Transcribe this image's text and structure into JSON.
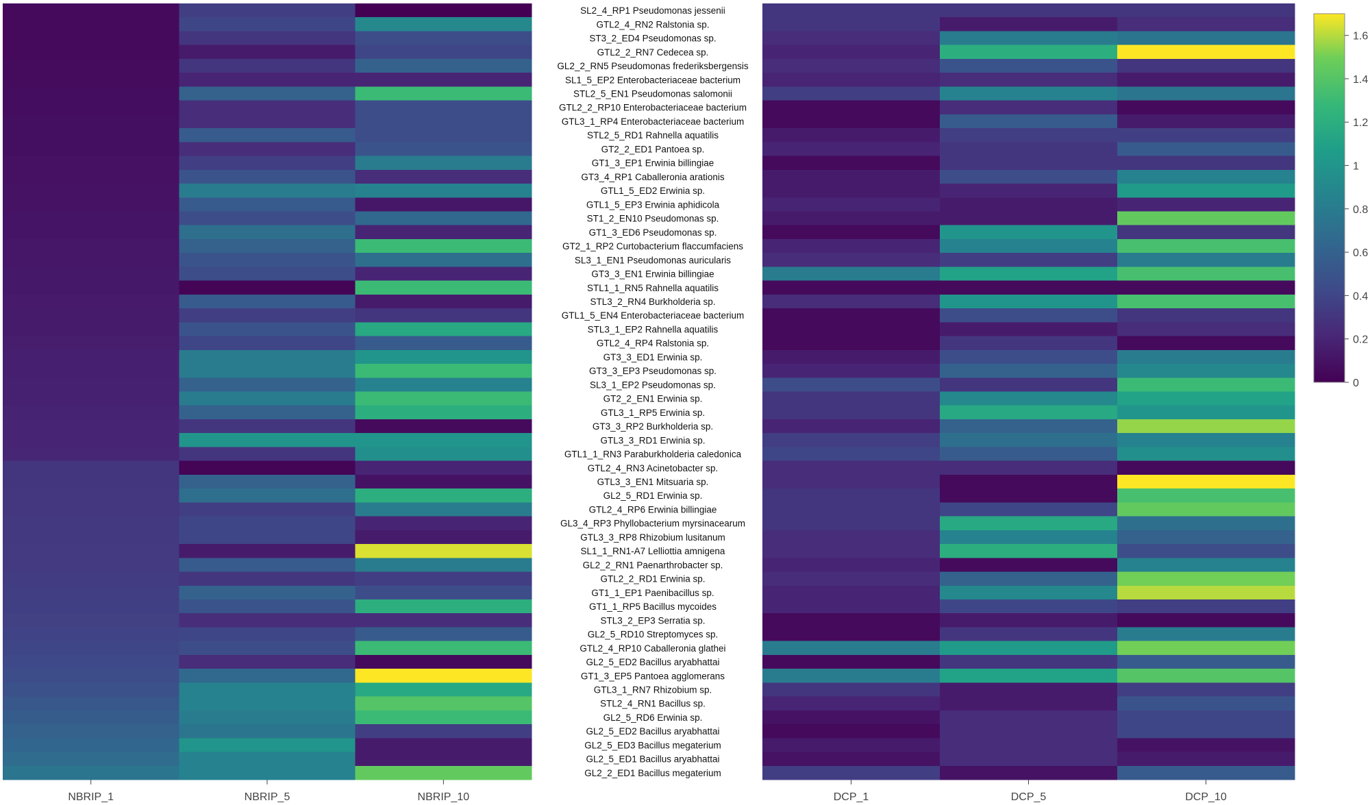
{
  "chart_data": {
    "type": "heatmap",
    "title": "",
    "colorscale": "viridis",
    "zlim": [
      0,
      1.7
    ],
    "colorbar_ticks": [
      "0",
      "0.2",
      "0.4",
      "0.6",
      "0.8",
      "1",
      "1.2",
      "1.4",
      "1.6"
    ],
    "colorbar_tick_values": [
      0,
      0.2,
      0.4,
      0.6,
      0.8,
      1.0,
      1.2,
      1.4,
      1.6
    ],
    "rows": [
      "SL2_4_RP1 Pseudomonas jessenii",
      "GTL2_4_RN2 Ralstonia sp.",
      "ST3_2_ED4 Pseudomonas sp.",
      "GTL2_2_RN7 Cedecea sp.",
      "GL2_2_RN5 Pseudomonas frederiksbergensis",
      "SL1_5_EP2 Enterobacteriaceae bacterium",
      "STL2_5_EN1 Pseudomonas salomonii",
      "GTL2_2_RP10 Enterobacteriaceae bacterium",
      "GTL3_1_RP4 Enterobacteriaceae bacterium",
      "STL2_5_RD1 Rahnella aquatilis",
      "GT2_2_ED1 Pantoea sp.",
      "GT1_3_EP1 Erwinia billingiae",
      "GT3_4_RP1 Caballeronia arationis",
      "GTL1_5_ED2 Erwinia sp.",
      "GTL1_5_EP3 Erwinia aphidicola",
      "ST1_2_EN10 Pseudomonas sp.",
      "GT1_3_ED6 Pseudomonas sp.",
      "GT2_1_RP2 Curtobacterium flaccumfaciens",
      "SL3_1_EN1 Pseudomonas auricularis",
      "GT3_3_EN1 Erwinia billingiae",
      "STL1_1_RN5 Rahnella aquatilis",
      "STL3_2_RN4 Burkholderia sp.",
      "GTL1_5_EN4 Enterobacteriaceae bacterium",
      "STL3_1_EP2 Rahnella aquatilis",
      "GTL2_4_RP4 Ralstonia sp.",
      "GT3_3_ED1 Erwinia sp.",
      "GT3_3_EP3 Pseudomonas sp.",
      "SL3_1_EP2 Pseudomonas sp.",
      "GT2_2_EN1 Erwinia sp.",
      "GTL3_1_RP5 Erwinia sp.",
      "GT3_3_RP2 Burkholderia sp.",
      "GTL3_3_RD1 Erwinia sp.",
      "GTL1_1_RN3 Paraburkholderia caledonica",
      "GTL2_4_RN3 Acinetobacter sp.",
      "GTL3_3_EN1 Mitsuaria sp.",
      "GL2_5_RD1 Erwinia sp.",
      "GTL2_4_RP6 Erwinia billingiae",
      "GL3_4_RP3 Phyllobacterium myrsinacearum",
      "GTL3_3_RP8 Rhizobium lusitanum",
      "SL1_1_RN1-A7 Lelliottia amnigena",
      "GL2_2_RN1 Paenarthrobacter sp.",
      "GTL2_2_RD1 Erwinia sp.",
      "GT1_1_EP1 Paenibacillus sp.",
      "GT1_1_RP5 Bacillus mycoides",
      "STL3_2_EP3 Serratia sp.",
      "GL2_5_RD10 Streptomyces sp.",
      "GTL2_4_RP10 Caballeronia glathei",
      "GL2_5_ED2 Bacillus aryabhattai",
      "GT1_3_EP5 Pantoea agglomerans",
      "GTL3_1_RN7 Rhizobium sp.",
      "STL2_4_RN1 Bacillus sp.",
      "GL2_5_RD6 Erwinia sp.",
      "GL2_5_ED2 Bacillus aryabhattai",
      "GL2_5_ED3 Bacillus megaterium",
      "GL2_5_ED1 Bacillus aryabhattai",
      "GL2_2_ED1  Bacillus megaterium"
    ],
    "left_panel": {
      "columns": [
        "NBRIP_1",
        "NBRIP_5",
        "NBRIP_10"
      ],
      "values": [
        [
          0.05,
          0.35,
          0.0
        ],
        [
          0.05,
          0.4,
          0.9
        ],
        [
          0.05,
          0.3,
          0.45
        ],
        [
          0.05,
          0.15,
          0.4
        ],
        [
          0.06,
          0.3,
          0.6
        ],
        [
          0.06,
          0.2,
          0.2
        ],
        [
          0.07,
          0.6,
          1.3
        ],
        [
          0.07,
          0.25,
          0.45
        ],
        [
          0.08,
          0.25,
          0.45
        ],
        [
          0.08,
          0.55,
          0.45
        ],
        [
          0.08,
          0.25,
          0.5
        ],
        [
          0.09,
          0.35,
          0.8
        ],
        [
          0.09,
          0.5,
          0.25
        ],
        [
          0.1,
          0.8,
          0.85
        ],
        [
          0.1,
          0.55,
          0.12
        ],
        [
          0.11,
          0.45,
          0.65
        ],
        [
          0.11,
          0.7,
          0.2
        ],
        [
          0.12,
          0.6,
          1.3
        ],
        [
          0.12,
          0.5,
          0.7
        ],
        [
          0.13,
          0.45,
          0.2
        ],
        [
          0.13,
          0.02,
          1.3
        ],
        [
          0.14,
          0.55,
          0.15
        ],
        [
          0.15,
          0.35,
          0.3
        ],
        [
          0.15,
          0.5,
          1.15
        ],
        [
          0.16,
          0.4,
          0.55
        ],
        [
          0.17,
          0.8,
          1.0
        ],
        [
          0.17,
          0.8,
          1.3
        ],
        [
          0.18,
          0.6,
          0.85
        ],
        [
          0.18,
          0.8,
          1.3
        ],
        [
          0.19,
          0.6,
          1.2
        ],
        [
          0.2,
          0.3,
          0.05
        ],
        [
          0.2,
          1.0,
          1.0
        ],
        [
          0.21,
          0.3,
          0.95
        ],
        [
          0.3,
          0.02,
          0.2
        ],
        [
          0.3,
          0.6,
          0.1
        ],
        [
          0.31,
          0.7,
          1.2
        ],
        [
          0.31,
          0.35,
          0.8
        ],
        [
          0.32,
          0.4,
          0.2
        ],
        [
          0.32,
          0.4,
          0.15
        ],
        [
          0.33,
          0.15,
          1.65
        ],
        [
          0.33,
          0.55,
          0.8
        ],
        [
          0.34,
          0.3,
          0.35
        ],
        [
          0.35,
          0.6,
          0.45
        ],
        [
          0.36,
          0.5,
          1.2
        ],
        [
          0.37,
          0.25,
          0.25
        ],
        [
          0.38,
          0.4,
          0.55
        ],
        [
          0.4,
          0.45,
          1.3
        ],
        [
          0.42,
          0.25,
          0.05
        ],
        [
          0.45,
          0.65,
          1.75
        ],
        [
          0.48,
          0.85,
          1.15
        ],
        [
          0.52,
          0.85,
          1.4
        ],
        [
          0.56,
          0.8,
          1.3
        ],
        [
          0.6,
          0.75,
          0.35
        ],
        [
          0.64,
          1.0,
          0.15
        ],
        [
          0.68,
          0.85,
          0.15
        ],
        [
          0.75,
          0.85,
          1.45
        ]
      ]
    },
    "right_panel": {
      "columns": [
        "DCP_1",
        "DCP_5",
        "DCP_10"
      ],
      "values": [
        [
          0.3,
          0.3,
          0.3
        ],
        [
          0.3,
          0.15,
          0.25
        ],
        [
          0.25,
          0.8,
          0.75
        ],
        [
          0.2,
          1.2,
          1.75
        ],
        [
          0.25,
          0.5,
          0.3
        ],
        [
          0.2,
          0.25,
          0.15
        ],
        [
          0.35,
          0.85,
          0.75
        ],
        [
          0.05,
          0.25,
          0.05
        ],
        [
          0.05,
          0.55,
          0.15
        ],
        [
          0.15,
          0.35,
          0.35
        ],
        [
          0.2,
          0.3,
          0.55
        ],
        [
          0.05,
          0.3,
          0.3
        ],
        [
          0.15,
          0.45,
          0.85
        ],
        [
          0.15,
          0.2,
          1.05
        ],
        [
          0.2,
          0.15,
          0.2
        ],
        [
          0.15,
          0.15,
          1.45
        ],
        [
          0.05,
          1.0,
          0.3
        ],
        [
          0.2,
          0.85,
          1.35
        ],
        [
          0.25,
          0.35,
          0.8
        ],
        [
          0.8,
          1.1,
          1.35
        ],
        [
          0.05,
          0.05,
          0.05
        ],
        [
          0.25,
          1.0,
          1.35
        ],
        [
          0.05,
          0.45,
          0.3
        ],
        [
          0.05,
          0.15,
          0.25
        ],
        [
          0.05,
          0.3,
          0.05
        ],
        [
          0.15,
          0.45,
          0.8
        ],
        [
          0.2,
          0.6,
          0.9
        ],
        [
          0.45,
          0.3,
          1.3
        ],
        [
          0.3,
          0.9,
          1.1
        ],
        [
          0.3,
          1.15,
          1.0
        ],
        [
          0.2,
          0.6,
          1.55
        ],
        [
          0.35,
          0.7,
          0.85
        ],
        [
          0.4,
          0.55,
          0.95
        ],
        [
          0.25,
          0.25,
          0.05
        ],
        [
          0.25,
          0.05,
          1.7
        ],
        [
          0.3,
          0.05,
          1.35
        ],
        [
          0.3,
          0.4,
          1.45
        ],
        [
          0.3,
          1.15,
          0.7
        ],
        [
          0.25,
          0.85,
          0.6
        ],
        [
          0.25,
          1.2,
          0.45
        ],
        [
          0.2,
          0.05,
          0.85
        ],
        [
          0.25,
          0.6,
          1.5
        ],
        [
          0.2,
          0.9,
          1.6
        ],
        [
          0.2,
          0.4,
          0.35
        ],
        [
          0.05,
          0.15,
          0.05
        ],
        [
          0.05,
          0.3,
          0.8
        ],
        [
          0.8,
          1.05,
          1.5
        ],
        [
          0.05,
          0.3,
          0.55
        ],
        [
          0.8,
          1.1,
          1.4
        ],
        [
          0.3,
          0.15,
          0.35
        ],
        [
          0.2,
          0.15,
          0.5
        ],
        [
          0.1,
          0.25,
          0.4
        ],
        [
          0.05,
          0.25,
          0.4
        ],
        [
          0.15,
          0.25,
          0.1
        ],
        [
          0.1,
          0.25,
          0.15
        ],
        [
          0.35,
          0.1,
          0.55
        ]
      ]
    }
  }
}
